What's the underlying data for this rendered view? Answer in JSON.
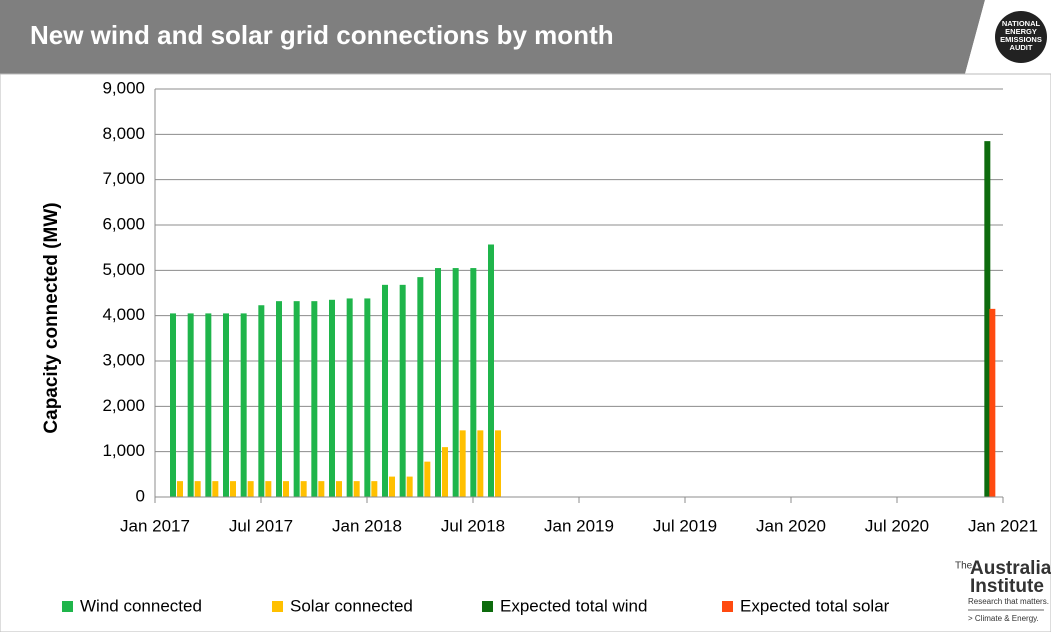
{
  "header": {
    "title": "New wind and solar grid connections by month",
    "logo": [
      "NATIONAL",
      "ENERGY",
      "EMISSIONS",
      "AUDIT"
    ]
  },
  "footer_logo": {
    "small": "The",
    "name1": "Australia",
    "name2": "Institute",
    "tagline": "Research that matters.",
    "program": "> Climate & Energy."
  },
  "chart_data": {
    "type": "bar",
    "y_label": "Capacity connected (MW)",
    "xlim": [
      "2017-01",
      "2021-01"
    ],
    "xticks": [
      {
        "value": "2017-01",
        "label": "Jan 2017"
      },
      {
        "value": "2017-07",
        "label": "Jul 2017"
      },
      {
        "value": "2018-01",
        "label": "Jan 2018"
      },
      {
        "value": "2018-07",
        "label": "Jul 2018"
      },
      {
        "value": "2019-01",
        "label": "Jan 2019"
      },
      {
        "value": "2019-07",
        "label": "Jul 2019"
      },
      {
        "value": "2020-01",
        "label": "Jan 2020"
      },
      {
        "value": "2020-07",
        "label": "Jul 2020"
      },
      {
        "value": "2021-01",
        "label": "Jan 2021"
      }
    ],
    "ylim": [
      0,
      9000
    ],
    "yticks": [
      0,
      {
        "value": 1000,
        "label": "1,000"
      },
      {
        "value": 2000,
        "label": "2,000"
      },
      {
        "value": 3000,
        "label": "3,000"
      },
      {
        "value": 4000,
        "label": "4,000"
      },
      {
        "value": 5000,
        "label": "5,000"
      },
      {
        "value": 6000,
        "label": "6,000"
      },
      {
        "value": 7000,
        "label": "7,000"
      },
      {
        "value": 8000,
        "label": "8,000"
      },
      {
        "value": 9000,
        "label": "9,000"
      }
    ],
    "grid": true,
    "legend": "bottom",
    "series": [
      {
        "name": "Wind connected",
        "color": "#1fb54b",
        "x": [
          "2017-01",
          "2017-02",
          "2017-03",
          "2017-04",
          "2017-05",
          "2017-06",
          "2017-07",
          "2017-08",
          "2017-09",
          "2017-10",
          "2017-11",
          "2017-12",
          "2018-01",
          "2018-02",
          "2018-03",
          "2018-04",
          "2018-05",
          "2018-06",
          "2018-07"
        ],
        "values": [
          4050,
          4050,
          4050,
          4050,
          4050,
          4230,
          4320,
          4320,
          4320,
          4350,
          4380,
          4380,
          4680,
          4680,
          4850,
          5050,
          5050,
          5050,
          5570
        ]
      },
      {
        "name": "Solar connected",
        "color": "#ffc000",
        "x": [
          "2017-01",
          "2017-02",
          "2017-03",
          "2017-04",
          "2017-05",
          "2017-06",
          "2017-07",
          "2017-08",
          "2017-09",
          "2017-10",
          "2017-11",
          "2017-12",
          "2018-01",
          "2018-02",
          "2018-03",
          "2018-04",
          "2018-05",
          "2018-06",
          "2018-07"
        ],
        "values": [
          350,
          350,
          350,
          350,
          350,
          350,
          350,
          350,
          350,
          350,
          350,
          350,
          450,
          450,
          780,
          1100,
          1470,
          1470,
          1470
        ]
      },
      {
        "name": "Expected total wind",
        "color": "#0d6b0d",
        "x": [
          "2020-12"
        ],
        "values": [
          7850
        ]
      },
      {
        "name": "Expected total solar",
        "color": "#ff4a10",
        "x": [
          "2020-12"
        ],
        "values": [
          4150
        ]
      }
    ]
  }
}
